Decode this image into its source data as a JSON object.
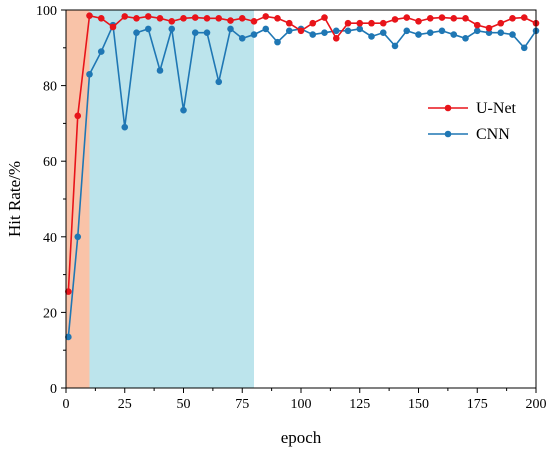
{
  "chart_data": {
    "type": "line",
    "xlabel": "epoch",
    "ylabel": "Hit Rate/%",
    "xlim": [
      0,
      200
    ],
    "ylim": [
      0,
      100
    ],
    "xticks": [
      0,
      25,
      50,
      75,
      100,
      125,
      150,
      175,
      200
    ],
    "yticks": [
      0,
      20,
      40,
      60,
      80,
      100
    ],
    "grid": false,
    "legend_position": "right",
    "shaded_regions": [
      {
        "x_start": 0,
        "x_end": 10,
        "color": "#f9c3a8"
      },
      {
        "x_start": 10,
        "x_end": 80,
        "color": "#bce4ec"
      }
    ],
    "x": [
      1,
      5,
      10,
      15,
      20,
      25,
      30,
      35,
      40,
      45,
      50,
      55,
      60,
      65,
      70,
      75,
      80,
      85,
      90,
      95,
      100,
      105,
      110,
      115,
      120,
      125,
      130,
      135,
      140,
      145,
      150,
      155,
      160,
      165,
      170,
      175,
      180,
      185,
      190,
      195,
      200
    ],
    "series": [
      {
        "name": "U-Net",
        "color": "#e8141a",
        "values": [
          25.5,
          72,
          98.5,
          97.8,
          95.5,
          98.3,
          97.8,
          98.3,
          97.8,
          97,
          97.8,
          98,
          97.8,
          97.8,
          97.2,
          97.8,
          97,
          98.3,
          97.8,
          96.5,
          94.5,
          96.5,
          98,
          92.5,
          96.5,
          96.5,
          96.5,
          96.5,
          97.5,
          98,
          97,
          97.8,
          98,
          97.8,
          97.8,
          96,
          95.2,
          96.5,
          97.8,
          98,
          96.5
        ]
      },
      {
        "name": "CNN",
        "color": "#1f77b4",
        "values": [
          13.5,
          40,
          83,
          89,
          96,
          69,
          94,
          95,
          84,
          95,
          73.5,
          94,
          94,
          81,
          95,
          92.5,
          93.5,
          95,
          91.5,
          94.5,
          95,
          93.5,
          94,
          94.5,
          94.5,
          95,
          93,
          94,
          90.5,
          94.5,
          93.5,
          94,
          94.5,
          93.5,
          92.5,
          94.5,
          94,
          94,
          93.5,
          90,
          94.5
        ]
      }
    ]
  }
}
